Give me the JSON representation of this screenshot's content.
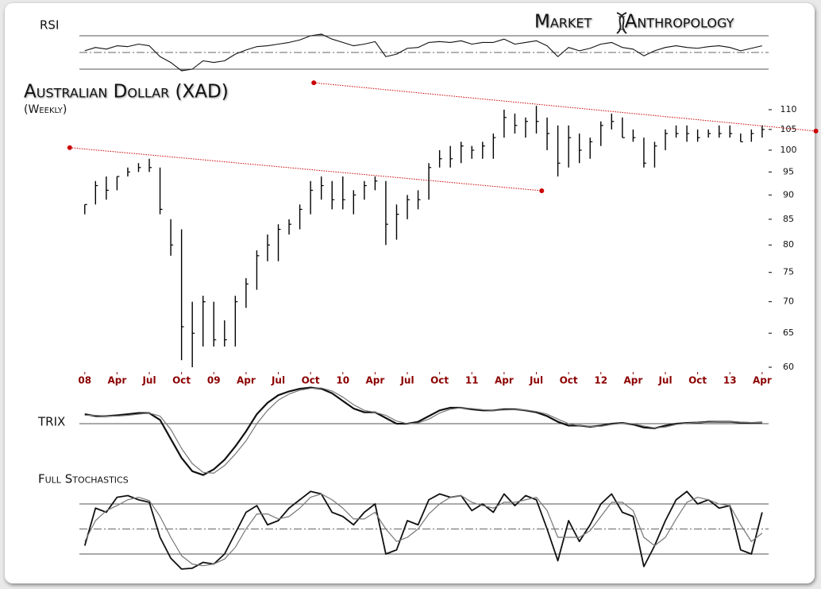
{
  "header": {
    "brand": "Market Anthropology"
  },
  "chart_data": [
    {
      "type": "line",
      "title": "RSI",
      "x": [
        0,
        1,
        2,
        3,
        4,
        5,
        6,
        7,
        8,
        9,
        10,
        11,
        12,
        13,
        14,
        15,
        16,
        17,
        18,
        19,
        20,
        21,
        22,
        23,
        24,
        25,
        26,
        27,
        28,
        29,
        30,
        31,
        32,
        33,
        34,
        35,
        36,
        37,
        38,
        39,
        40,
        41,
        42,
        43,
        44,
        45,
        46,
        47,
        48,
        49,
        50,
        51,
        52,
        53,
        54,
        55,
        56,
        57,
        58,
        59,
        60,
        61,
        62,
        63
      ],
      "xlim": [
        -0.5,
        63.6
      ],
      "ylim": [
        30,
        70
      ],
      "levels": [
        30,
        50,
        70
      ],
      "dashed_levels": [
        50
      ],
      "fill": "#777777",
      "series": [
        {
          "color": "#111111",
          "values": [
            52,
            56,
            54,
            58,
            57,
            60,
            58,
            45,
            38,
            28,
            30,
            40,
            38,
            40,
            48,
            53,
            57,
            58,
            60,
            62,
            65,
            70,
            72,
            66,
            62,
            58,
            60,
            63,
            45,
            48,
            55,
            56,
            62,
            63,
            62,
            64,
            60,
            62,
            62,
            66,
            60,
            62,
            64,
            58,
            45,
            56,
            52,
            55,
            60,
            62,
            56,
            54,
            46,
            52,
            56,
            58,
            56,
            55,
            57,
            58,
            56,
            52,
            55,
            58
          ]
        }
      ]
    },
    {
      "type": "hlc",
      "title": "Australian Dollar (XAD)",
      "subtitle": "(Weekly)",
      "x": [
        0,
        1,
        2,
        3,
        4,
        5,
        6,
        7,
        8,
        9,
        10,
        11,
        12,
        13,
        14,
        15,
        16,
        17,
        18,
        19,
        20,
        21,
        22,
        23,
        24,
        25,
        26,
        27,
        28,
        29,
        30,
        31,
        32,
        33,
        34,
        35,
        36,
        37,
        38,
        39,
        40,
        41,
        42,
        43,
        44,
        45,
        46,
        47,
        48,
        49,
        50,
        51,
        52,
        53,
        54,
        55,
        56,
        57,
        58,
        59,
        60,
        61,
        62,
        63
      ],
      "high": [
        88,
        93,
        94,
        94,
        96,
        97,
        98,
        96,
        85,
        83,
        70,
        71,
        70,
        67,
        71,
        74,
        79,
        82,
        84,
        85,
        88,
        93,
        94,
        93,
        94,
        91,
        93,
        94,
        93,
        88,
        90,
        91,
        97,
        100,
        101,
        102,
        101,
        102,
        104,
        110,
        109,
        108,
        111,
        108,
        106,
        106,
        104,
        103,
        107,
        109,
        108,
        105,
        103,
        102,
        105,
        106,
        106,
        105,
        105,
        106,
        106,
        104,
        105,
        106
      ],
      "low": [
        86,
        88,
        89,
        91,
        94,
        95,
        95,
        86,
        78,
        61,
        60,
        63,
        63,
        63,
        63,
        69,
        72,
        77,
        77,
        82,
        83,
        86,
        89,
        87,
        87,
        86,
        89,
        91,
        80,
        81,
        85,
        87,
        89,
        96,
        96,
        97,
        98,
        98,
        98,
        103,
        104,
        103,
        104,
        100,
        94,
        96,
        97,
        98,
        101,
        105,
        103,
        102,
        96,
        96,
        100,
        103,
        102,
        102,
        103,
        103,
        103,
        102,
        102,
        103
      ],
      "close": [
        88,
        92,
        91,
        94,
        95,
        96,
        96,
        87,
        80,
        66,
        65,
        70,
        64,
        64,
        70,
        73,
        78,
        80,
        83,
        84,
        87,
        91,
        92,
        89,
        89,
        90,
        92,
        93,
        84,
        86,
        89,
        89,
        96,
        98,
        98,
        101,
        100,
        101,
        103,
        108,
        106,
        107,
        107,
        104,
        97,
        103,
        100,
        102,
        106,
        107,
        103,
        103,
        97,
        101,
        104,
        104,
        104,
        103,
        104,
        104,
        104,
        102,
        104,
        105
      ],
      "color": "#000000",
      "log_scale": true,
      "xlim": [
        -0.5,
        63.6
      ],
      "ylim": [
        60,
        110
      ],
      "yticks": [
        60,
        65,
        70,
        75,
        80,
        85,
        90,
        95,
        100,
        105,
        110
      ],
      "xticks": [
        {
          "value": 0,
          "label": "08"
        },
        {
          "value": 3,
          "label": "Apr"
        },
        {
          "value": 6,
          "label": "Jul"
        },
        {
          "value": 9,
          "label": "Oct"
        },
        {
          "value": 12,
          "label": "09"
        },
        {
          "value": 15,
          "label": "Apr"
        },
        {
          "value": 18,
          "label": "Jul"
        },
        {
          "value": 21,
          "label": "Oct"
        },
        {
          "value": 24,
          "label": "10"
        },
        {
          "value": 27,
          "label": "Apr"
        },
        {
          "value": 30,
          "label": "Jul"
        },
        {
          "value": 33,
          "label": "Oct"
        },
        {
          "value": 36,
          "label": "11"
        },
        {
          "value": 39,
          "label": "Apr"
        },
        {
          "value": 42,
          "label": "Jul"
        },
        {
          "value": 45,
          "label": "Oct"
        },
        {
          "value": 48,
          "label": "12"
        },
        {
          "value": 51,
          "label": "Apr"
        },
        {
          "value": 54,
          "label": "Jul"
        },
        {
          "value": 57,
          "label": "Oct"
        },
        {
          "value": 60,
          "label": "13"
        },
        {
          "value": 63,
          "label": "Apr"
        }
      ],
      "tick_color": "#8b0000",
      "trendlines": [
        {
          "x": [
            21.3,
            68
          ],
          "y": [
            117.2,
            104.6
          ],
          "color": "#cc0000"
        },
        {
          "x": [
            -1.4,
            42.5
          ],
          "y": [
            100.6,
            90.9
          ],
          "color": "#cc0000"
        }
      ]
    },
    {
      "type": "line",
      "title": "TRIX",
      "x": [
        0,
        1,
        2,
        3,
        4,
        5,
        6,
        7,
        8,
        9,
        10,
        11,
        12,
        13,
        14,
        15,
        16,
        17,
        18,
        19,
        20,
        21,
        22,
        23,
        24,
        25,
        26,
        27,
        28,
        29,
        30,
        31,
        32,
        33,
        34,
        35,
        36,
        37,
        38,
        39,
        40,
        41,
        42,
        43,
        44,
        45,
        46,
        47,
        48,
        49,
        50,
        51,
        52,
        53,
        54,
        55,
        56,
        57,
        58,
        59,
        60,
        61,
        62,
        63
      ],
      "xlim": [
        -0.5,
        63.6
      ],
      "ylim": [
        -1.4,
        0.9
      ],
      "levels": [
        0
      ],
      "series": [
        {
          "color": "#111111",
          "width": 2.2,
          "values": [
            0.25,
            0.2,
            0.2,
            0.22,
            0.25,
            0.28,
            0.28,
            0.1,
            -0.4,
            -0.9,
            -1.25,
            -1.35,
            -1.2,
            -0.95,
            -0.6,
            -0.2,
            0.25,
            0.55,
            0.75,
            0.85,
            0.92,
            0.95,
            0.92,
            0.8,
            0.6,
            0.4,
            0.3,
            0.3,
            0.15,
            0.0,
            0.0,
            0.05,
            0.2,
            0.35,
            0.42,
            0.42,
            0.38,
            0.35,
            0.35,
            0.38,
            0.38,
            0.35,
            0.3,
            0.2,
            0.05,
            -0.05,
            -0.05,
            -0.08,
            -0.05,
            0.0,
            0.02,
            -0.02,
            -0.1,
            -0.12,
            -0.05,
            0.0,
            0.02,
            0.03,
            0.05,
            0.05,
            0.05,
            0.03,
            0.02,
            0.03
          ]
        },
        {
          "color": "#777777",
          "width": 1.2,
          "values": [
            0.22,
            0.22,
            0.2,
            0.2,
            0.22,
            0.25,
            0.28,
            0.2,
            -0.15,
            -0.65,
            -1.05,
            -1.28,
            -1.3,
            -1.1,
            -0.8,
            -0.45,
            0.0,
            0.35,
            0.62,
            0.78,
            0.88,
            0.93,
            0.94,
            0.86,
            0.7,
            0.5,
            0.35,
            0.3,
            0.22,
            0.07,
            0.0,
            0.02,
            0.12,
            0.28,
            0.38,
            0.42,
            0.4,
            0.37,
            0.35,
            0.36,
            0.37,
            0.36,
            0.32,
            0.25,
            0.12,
            0.0,
            -0.05,
            -0.07,
            -0.07,
            -0.02,
            0.01,
            0.0,
            -0.06,
            -0.11,
            -0.09,
            -0.02,
            0.01,
            0.03,
            0.04,
            0.05,
            0.05,
            0.04,
            0.03,
            0.03
          ]
        }
      ]
    },
    {
      "type": "line",
      "title": "Full Stochastics",
      "x": [
        0,
        1,
        2,
        3,
        4,
        5,
        6,
        7,
        8,
        9,
        10,
        11,
        12,
        13,
        14,
        15,
        16,
        17,
        18,
        19,
        20,
        21,
        22,
        23,
        24,
        25,
        26,
        27,
        28,
        29,
        30,
        31,
        32,
        33,
        34,
        35,
        36,
        37,
        38,
        39,
        40,
        41,
        42,
        43,
        44,
        45,
        46,
        47,
        48,
        49,
        50,
        51,
        52,
        53,
        54,
        55,
        56,
        57,
        58,
        59,
        60,
        61,
        62,
        63
      ],
      "xlim": [
        -0.5,
        63.6
      ],
      "ylim": [
        0,
        100
      ],
      "levels": [
        20,
        50,
        80
      ],
      "dashed_levels": [
        50
      ],
      "series": [
        {
          "color": "#111111",
          "width": 1.8,
          "values": [
            30,
            75,
            70,
            88,
            90,
            85,
            82,
            40,
            15,
            2,
            3,
            10,
            8,
            20,
            45,
            70,
            78,
            55,
            60,
            75,
            85,
            95,
            92,
            70,
            65,
            55,
            70,
            80,
            20,
            25,
            60,
            55,
            85,
            92,
            88,
            90,
            72,
            80,
            70,
            92,
            78,
            90,
            85,
            50,
            12,
            60,
            35,
            55,
            80,
            92,
            70,
            65,
            5,
            30,
            60,
            85,
            95,
            80,
            85,
            75,
            78,
            25,
            20,
            70
          ]
        },
        {
          "color": "#777777",
          "width": 1.2,
          "values": [
            35,
            60,
            72,
            78,
            85,
            88,
            84,
            65,
            40,
            18,
            8,
            6,
            8,
            14,
            28,
            50,
            68,
            68,
            62,
            65,
            75,
            88,
            92,
            85,
            75,
            62,
            62,
            70,
            50,
            35,
            40,
            50,
            68,
            80,
            88,
            90,
            82,
            78,
            75,
            82,
            82,
            85,
            88,
            72,
            40,
            40,
            40,
            48,
            65,
            82,
            82,
            72,
            40,
            30,
            40,
            62,
            82,
            88,
            85,
            80,
            78,
            55,
            35,
            45
          ]
        }
      ]
    }
  ]
}
